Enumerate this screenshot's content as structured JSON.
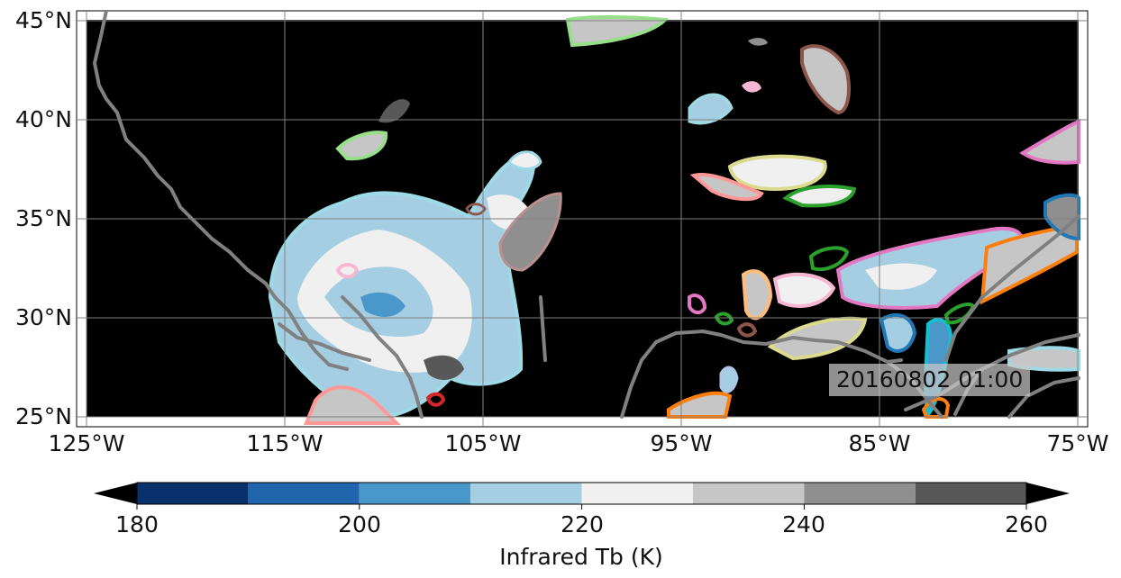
{
  "map": {
    "timestamp": "20160802 01:00",
    "background_color": "#000000",
    "extent": {
      "lon_min": -125,
      "lon_max": -75,
      "lat_min": 25,
      "lat_max": 45
    },
    "lat_ticks": [
      "25°N",
      "30°N",
      "35°N",
      "40°N",
      "45°N"
    ],
    "lon_ticks": [
      "125°W",
      "115°W",
      "105°W",
      "95°W",
      "85°W",
      "75°W"
    ],
    "gridlines": true,
    "coastline_color": "#808080"
  },
  "colorbar": {
    "title": "Infrared Tb (K)",
    "tick_labels": [
      "180",
      "200",
      "220",
      "240",
      "260"
    ],
    "extend": "both",
    "bins": [
      {
        "from": 180,
        "to": 190,
        "color": "#08306b"
      },
      {
        "from": 190,
        "to": 200,
        "color": "#2166ac"
      },
      {
        "from": 200,
        "to": 210,
        "color": "#4a98c9"
      },
      {
        "from": 210,
        "to": 220,
        "color": "#a6cee3"
      },
      {
        "from": 220,
        "to": 230,
        "color": "#f0f0f0"
      },
      {
        "from": 230,
        "to": 240,
        "color": "#c6c6c6"
      },
      {
        "from": 240,
        "to": 250,
        "color": "#8f8f8f"
      },
      {
        "from": 250,
        "to": 260,
        "color": "#585858"
      }
    ]
  }
}
